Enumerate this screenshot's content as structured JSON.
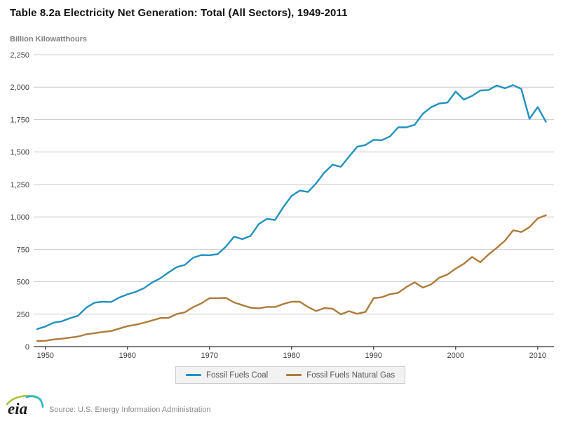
{
  "header": {
    "title": "Table 8.2a Electricity Net Generation: Total (All Sectors), 1949-2011",
    "units_label": "Billion Kilowatthours"
  },
  "legend": {
    "items": [
      {
        "label": "Fossil Fuels Coal",
        "color": "#2191c0"
      },
      {
        "label": "Fossil Fuels Natural Gas",
        "color": "#ae7b3b"
      }
    ]
  },
  "footer": {
    "logo_text": "eia",
    "source": "Source: U.S. Energy Information Administration"
  },
  "colors": {
    "coal_line": "#2191c0",
    "gas_line": "#ae7b3b",
    "gridline": "#cccccc",
    "axis": "#333333",
    "tick_label": "#404040",
    "logo_green": "#a2c53a",
    "logo_blue": "#2fb4cd"
  },
  "chart_data": {
    "type": "line",
    "title": "Table 8.2a Electricity Net Generation: Total (All Sectors), 1949-2011",
    "ylabel": "Billion Kilowatthours",
    "xlabel": "",
    "xlim": [
      1949,
      2011
    ],
    "ylim": [
      0,
      2250
    ],
    "grid": true,
    "legend_position": "bottom",
    "y_ticks": [
      {
        "value": 0,
        "label": "0"
      },
      {
        "value": 250,
        "label": "250"
      },
      {
        "value": 500,
        "label": "500"
      },
      {
        "value": 750,
        "label": "750"
      },
      {
        "value": 1000,
        "label": "1,000"
      },
      {
        "value": 1250,
        "label": "1,250"
      },
      {
        "value": 1500,
        "label": "1,500"
      },
      {
        "value": 1750,
        "label": "1,750"
      },
      {
        "value": 2000,
        "label": "2,000"
      },
      {
        "value": 2250,
        "label": "2,250"
      }
    ],
    "x_ticks": [
      {
        "value": 1950,
        "label": "1950"
      },
      {
        "value": 1960,
        "label": "1960"
      },
      {
        "value": 1970,
        "label": "1970"
      },
      {
        "value": 1980,
        "label": "1980"
      },
      {
        "value": 1990,
        "label": "1990"
      },
      {
        "value": 2000,
        "label": "2000"
      },
      {
        "value": 2010,
        "label": "2010"
      }
    ],
    "x": [
      1949,
      1950,
      1951,
      1952,
      1953,
      1954,
      1955,
      1956,
      1957,
      1958,
      1959,
      1960,
      1961,
      1962,
      1963,
      1964,
      1965,
      1966,
      1967,
      1968,
      1969,
      1970,
      1971,
      1972,
      1973,
      1974,
      1975,
      1976,
      1977,
      1978,
      1979,
      1980,
      1981,
      1982,
      1983,
      1984,
      1985,
      1986,
      1987,
      1988,
      1989,
      1990,
      1991,
      1992,
      1993,
      1994,
      1995,
      1996,
      1997,
      1998,
      1999,
      2000,
      2001,
      2002,
      2003,
      2004,
      2005,
      2006,
      2007,
      2008,
      2009,
      2010,
      2011
    ],
    "series": [
      {
        "name": "Fossil Fuels Coal",
        "key": "coal",
        "color": "#2191c0",
        "values": [
          135,
          155,
          185,
          195,
          219,
          239,
          301,
          339,
          346,
          344,
          378,
          403,
          422,
          450,
          494,
          526,
          571,
          613,
          630,
          685,
          706,
          704,
          713,
          771,
          848,
          828,
          853,
          944,
          985,
          976,
          1075,
          1162,
          1203,
          1192,
          1259,
          1342,
          1402,
          1386,
          1464,
          1541,
          1554,
          1594,
          1591,
          1621,
          1690,
          1691,
          1709,
          1795,
          1845,
          1874,
          1881,
          1966,
          1904,
          1933,
          1974,
          1978,
          2013,
          1991,
          2016,
          1986,
          1756,
          1847,
          1733
        ]
      },
      {
        "name": "Fossil Fuels Natural Gas",
        "key": "gas",
        "color": "#ae7b3b",
        "values": [
          43,
          45,
          55,
          61,
          69,
          78,
          95,
          104,
          113,
          120,
          139,
          158,
          169,
          184,
          202,
          220,
          222,
          251,
          265,
          304,
          333,
          373,
          374,
          376,
          341,
          320,
          300,
          295,
          306,
          305,
          329,
          346,
          346,
          305,
          274,
          297,
          292,
          249,
          273,
          253,
          267,
          373,
          381,
          404,
          415,
          460,
          496,
          455,
          479,
          531,
          556,
          601,
          639,
          691,
          650,
          710,
          761,
          816,
          897,
          883,
          921,
          988,
          1013
        ]
      }
    ]
  }
}
